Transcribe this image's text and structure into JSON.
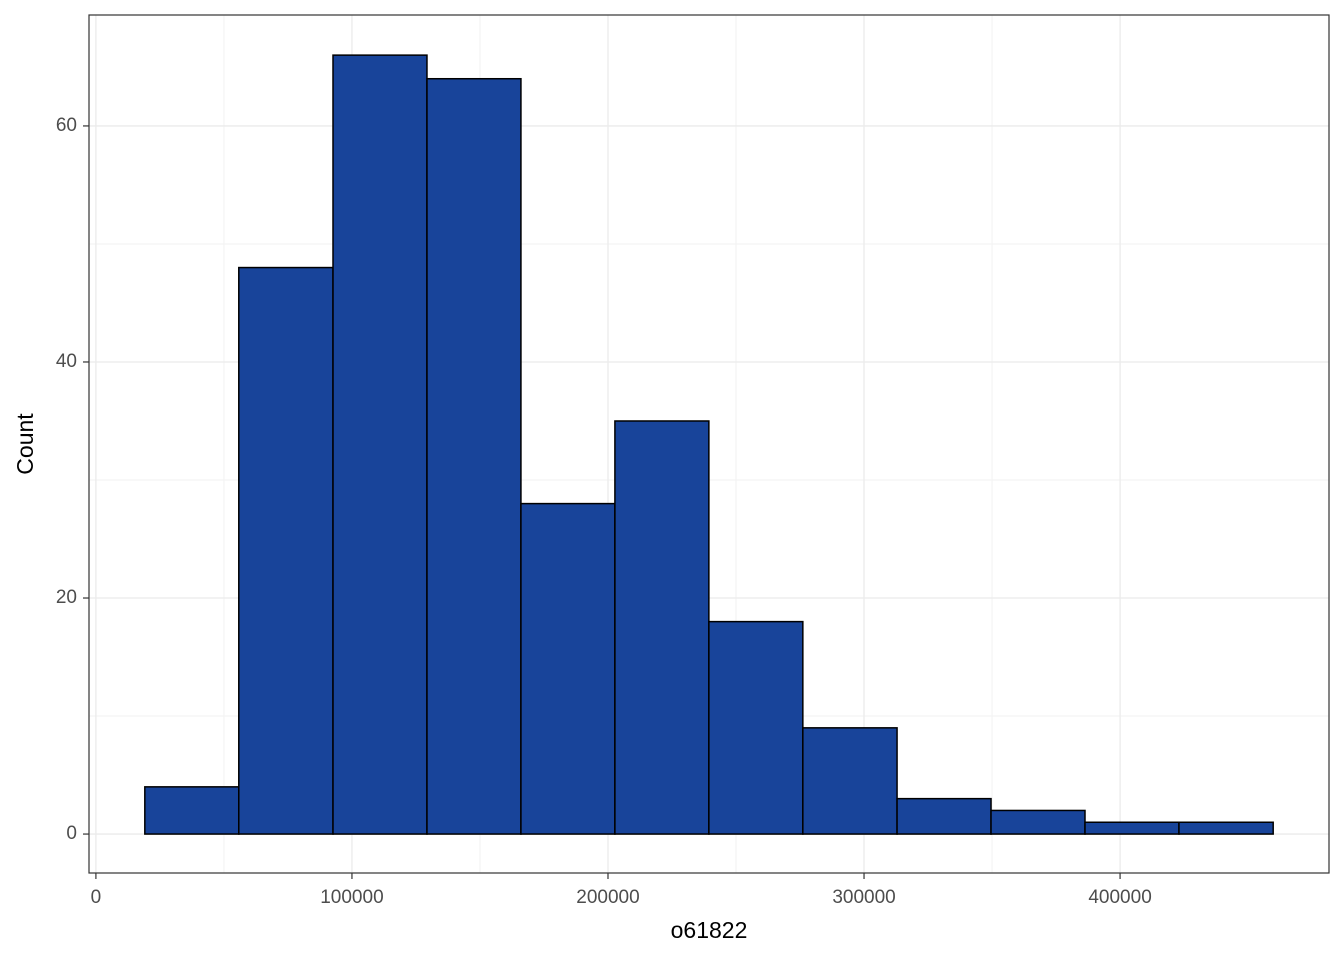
{
  "chart_data": {
    "type": "histogram",
    "x_label": "o61822",
    "y_label": "Count",
    "bins": [
      19100,
      55800,
      92600,
      129300,
      166000,
      202700,
      239400,
      276100,
      312900,
      349600,
      386300,
      423000,
      459800
    ],
    "values": [
      4,
      48,
      66,
      64,
      28,
      35,
      18,
      9,
      3,
      2,
      1,
      1
    ],
    "color": "#18449a",
    "xlim": [
      -2700,
      481600
    ],
    "ylim": [
      -3.3,
      69.4
    ],
    "xticks": [
      0,
      100000,
      200000,
      300000,
      400000
    ],
    "yticks": [
      0,
      20,
      40,
      60
    ],
    "grid": true
  }
}
